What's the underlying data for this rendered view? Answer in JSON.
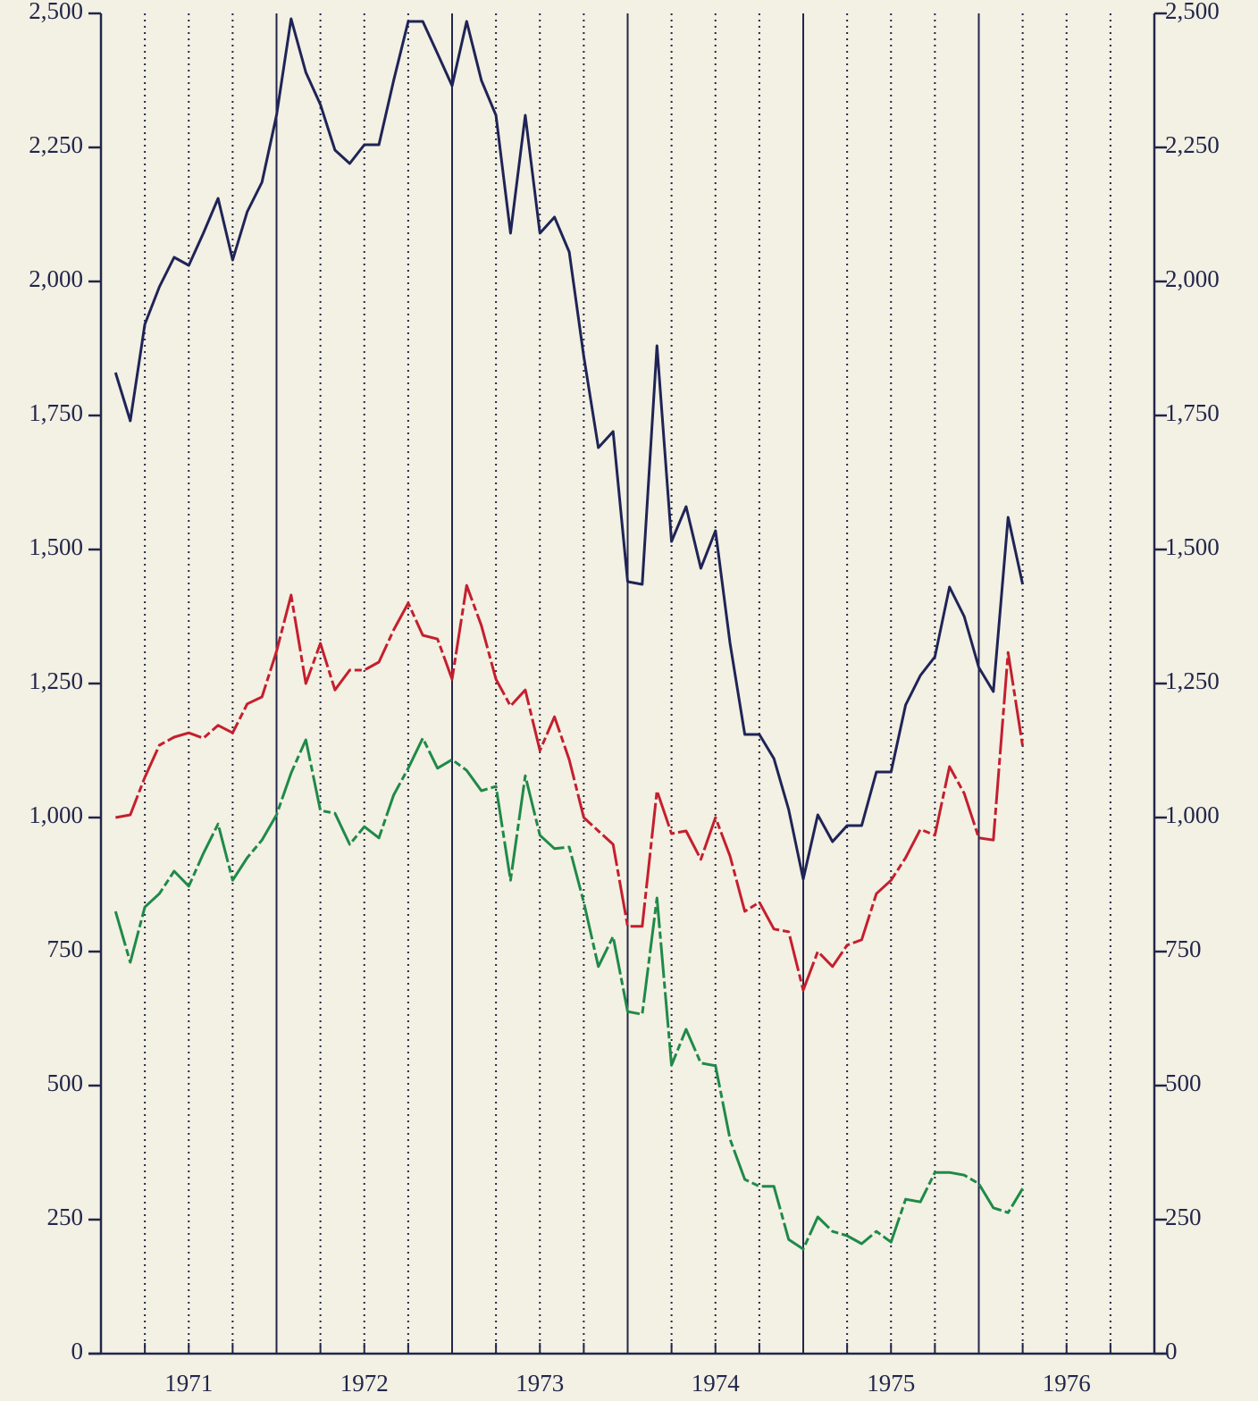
{
  "chart_data": {
    "type": "line",
    "x": [
      1971.083,
      1971.167,
      1971.25,
      1971.333,
      1971.417,
      1971.5,
      1971.583,
      1971.667,
      1971.75,
      1971.833,
      1971.917,
      1972,
      1972.083,
      1972.167,
      1972.25,
      1972.333,
      1972.417,
      1972.5,
      1972.583,
      1972.667,
      1972.75,
      1972.833,
      1972.917,
      1973,
      1973.083,
      1973.167,
      1973.25,
      1973.333,
      1973.417,
      1973.5,
      1973.583,
      1973.667,
      1973.75,
      1973.833,
      1973.917,
      1974,
      1974.083,
      1974.167,
      1974.25,
      1974.333,
      1974.417,
      1974.5,
      1974.583,
      1974.667,
      1974.75,
      1974.833,
      1974.917,
      1975,
      1975.083,
      1975.167,
      1975.25,
      1975.333,
      1975.417,
      1975.5,
      1975.583,
      1975.667,
      1975.75,
      1975.833,
      1975.917,
      1976,
      1976.083,
      1976.167,
      1976.25
    ],
    "series": [
      {
        "color": "#1f2456",
        "dashed": false,
        "values": [
          1830,
          1740,
          1920,
          1990,
          2045,
          2030,
          2090,
          2155,
          2040,
          2130,
          2185,
          2310,
          2490,
          2390,
          2330,
          2245,
          2220,
          2255,
          2255,
          2375,
          2485,
          2485,
          2425,
          2365,
          2485,
          2375,
          2310,
          2090,
          2310,
          2090,
          2120,
          2055,
          1860,
          1690,
          1720,
          1440,
          1435,
          1880,
          1515,
          1580,
          1465,
          1535,
          1325,
          1155,
          1155,
          1110,
          1015,
          885,
          1005,
          955,
          985,
          985,
          1085,
          1085,
          1210,
          1265,
          1300,
          1430,
          1375,
          1280,
          1235,
          1560,
          1435
        ]
      },
      {
        "color": "#c41f2d",
        "dashed": true,
        "values": [
          1000,
          1005,
          1075,
          1135,
          1150,
          1158,
          1148,
          1172,
          1158,
          1212,
          1225,
          1310,
          1415,
          1250,
          1325,
          1238,
          1275,
          1275,
          1290,
          1350,
          1400,
          1340,
          1333,
          1258,
          1433,
          1358,
          1258,
          1208,
          1238,
          1125,
          1188,
          1108,
          1000,
          975,
          950,
          797,
          797,
          1050,
          970,
          975,
          922,
          1000,
          928,
          825,
          842,
          792,
          787,
          678,
          750,
          722,
          762,
          772,
          858,
          883,
          925,
          978,
          967,
          1095,
          1045,
          962,
          958,
          1308,
          1133
        ]
      },
      {
        "color": "#1e8a48",
        "dashed": true,
        "values": [
          825,
          730,
          833,
          858,
          900,
          872,
          933,
          988,
          883,
          925,
          958,
          1005,
          1083,
          1145,
          1013,
          1008,
          950,
          983,
          962,
          1042,
          1092,
          1148,
          1092,
          1108,
          1088,
          1050,
          1058,
          883,
          1078,
          967,
          942,
          945,
          842,
          722,
          778,
          638,
          633,
          850,
          538,
          605,
          542,
          537,
          400,
          325,
          312,
          312,
          213,
          195,
          255,
          228,
          220,
          205,
          228,
          208,
          288,
          283,
          338,
          338,
          333,
          317,
          272,
          263,
          308
        ]
      }
    ],
    "xlim": [
      1971,
      1977
    ],
    "xticks": [
      {
        "value": 1971.5,
        "label": "1971"
      },
      {
        "value": 1972.5,
        "label": "1972"
      },
      {
        "value": 1973.5,
        "label": "1973"
      },
      {
        "value": 1974.5,
        "label": "1974"
      },
      {
        "value": 1975.5,
        "label": "1975"
      },
      {
        "value": 1976.5,
        "label": "1976"
      }
    ],
    "year_lines": [
      1972,
      1973,
      1974,
      1975,
      1976
    ],
    "quarter_lines": [
      1971.25,
      1971.5,
      1971.75,
      1972.25,
      1972.5,
      1972.75,
      1973.25,
      1973.5,
      1973.75,
      1974.25,
      1974.5,
      1974.75,
      1975.25,
      1975.5,
      1975.75,
      1976.25,
      1976.5,
      1976.75
    ],
    "ylim": [
      0,
      2500
    ],
    "yticks": [
      0,
      250,
      500,
      750,
      {
        "value": 1000,
        "label": "1,000"
      },
      {
        "value": 1250,
        "label": "1,250"
      },
      {
        "value": 1500,
        "label": "1,500"
      },
      {
        "value": 1750,
        "label": "1,750"
      },
      {
        "value": 2000,
        "label": "2,000"
      },
      {
        "value": 2250,
        "label": "2,250"
      },
      {
        "value": 2500,
        "label": "2,500"
      }
    ],
    "mirror_y_axis": true
  }
}
